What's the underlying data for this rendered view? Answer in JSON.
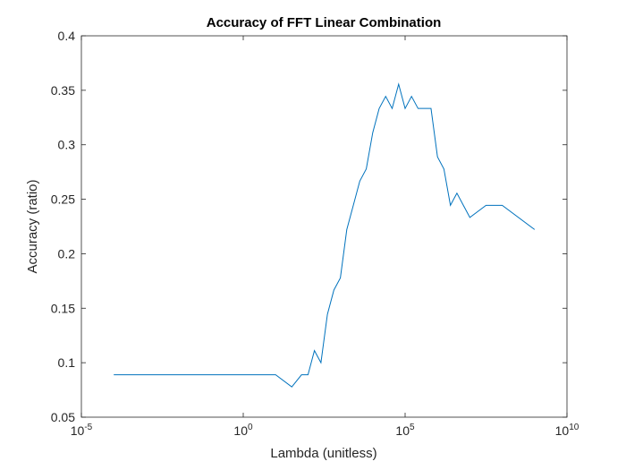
{
  "chart_data": {
    "type": "line",
    "title": "Accuracy of FFT Linear Combination",
    "xlabel": "Lambda (unitless)",
    "ylabel": "Accuracy (ratio)",
    "x_scale": "log",
    "xlim": [
      1e-05,
      10000000000.0
    ],
    "ylim": [
      0.05,
      0.4
    ],
    "x_ticks": [
      {
        "base": "10",
        "exp": "-5",
        "value": 1e-05
      },
      {
        "base": "10",
        "exp": "0",
        "value": 1
      },
      {
        "base": "10",
        "exp": "5",
        "value": 100000.0
      },
      {
        "base": "10",
        "exp": "10",
        "value": 10000000000.0
      }
    ],
    "y_ticks": [
      "0.05",
      "0.1",
      "0.15",
      "0.2",
      "0.25",
      "0.3",
      "0.35",
      "0.4"
    ],
    "grid": false,
    "line_color": "#0072bd",
    "series": [
      {
        "x": [
          0.0001,
          10,
          31.6,
          63.1,
          100,
          158,
          251,
          398,
          631,
          1000,
          1580,
          2510,
          3980,
          6310,
          10000,
          15800,
          25100,
          39800,
          63100,
          100000,
          158000,
          251000,
          398000,
          631000,
          1000000,
          1580000,
          2510000,
          3980000,
          6310000,
          10000000.0,
          31600000.0,
          100000000.0,
          1000000000.0
        ],
        "y": [
          0.0889,
          0.0889,
          0.0778,
          0.0889,
          0.0889,
          0.1111,
          0.1,
          0.1444,
          0.1667,
          0.1778,
          0.2222,
          0.2444,
          0.2667,
          0.2778,
          0.3111,
          0.3333,
          0.3444,
          0.3333,
          0.3556,
          0.3333,
          0.3444,
          0.3333,
          0.3333,
          0.3333,
          0.2889,
          0.2778,
          0.2444,
          0.2556,
          0.2444,
          0.2333,
          0.2444,
          0.2444,
          0.2222
        ]
      }
    ]
  }
}
